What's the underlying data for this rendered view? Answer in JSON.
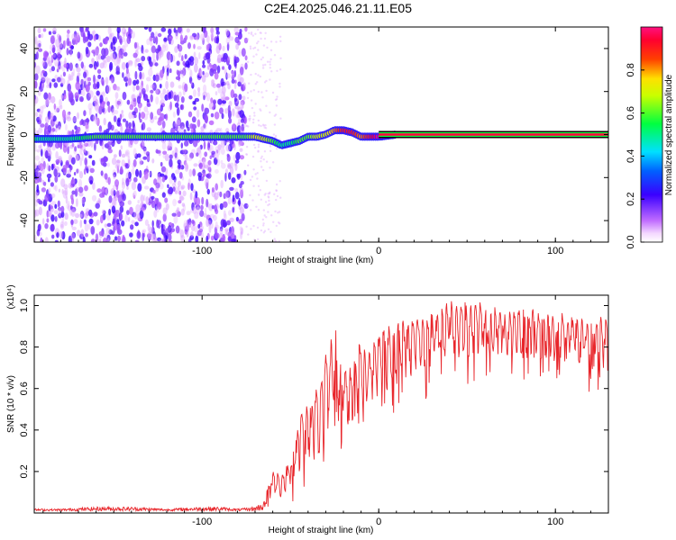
{
  "title": "C2E4.2025.046.21.11.E05",
  "colors": {
    "trace": "#e8262b",
    "spectrogram_low": "#8a2be2",
    "frame": "#000000"
  },
  "colorbar": {
    "label": "Normalized spectral amplitude",
    "ticks": [
      "0.0",
      "0.2",
      "0.4",
      "0.6",
      "0.8"
    ],
    "tick_values": [
      0.0,
      0.2,
      0.4,
      0.6,
      0.8
    ],
    "range": [
      0.0,
      1.0
    ],
    "colormap": "rainbow (magenta-blue-cyan-green-yellow-red-pink)"
  },
  "chart_data": [
    {
      "type": "heatmap",
      "title": "C2E4.2025.046.21.11.E05",
      "xlabel": "Height of straight line (km)",
      "ylabel": "Frequency (Hz)",
      "xlim": [
        -195,
        130
      ],
      "ylim": [
        -50,
        50
      ],
      "x_ticks": [
        "-100",
        "0",
        "100"
      ],
      "x_tick_values": [
        -100,
        0,
        100
      ],
      "y_ticks": [
        "-40",
        "-20",
        "0",
        "20",
        "40"
      ],
      "y_tick_values": [
        -40,
        -20,
        0,
        20,
        40
      ],
      "noise_region_x": [
        -195,
        -75
      ],
      "signal_trace": {
        "x": [
          -195,
          -175,
          -160,
          -145,
          -130,
          -115,
          -100,
          -90,
          -80,
          -75,
          -70,
          -65,
          -60,
          -55,
          -50,
          -45,
          -40,
          -35,
          -30,
          -25,
          -20,
          -15,
          -10,
          -5,
          0,
          10,
          130
        ],
        "freq": [
          -2,
          -2,
          -1,
          -1,
          -1,
          -1,
          -1,
          -1,
          -1,
          -1,
          -1,
          -2,
          -3,
          -5,
          -4,
          -3,
          -1,
          -1,
          0,
          2,
          2,
          1,
          -1,
          -1,
          -1,
          0,
          0
        ],
        "amplitude": [
          0.5,
          0.5,
          0.6,
          0.6,
          0.6,
          0.6,
          0.6,
          0.6,
          0.6,
          0.6,
          0.7,
          0.7,
          0.6,
          0.5,
          0.5,
          0.6,
          0.6,
          0.7,
          0.7,
          0.8,
          0.9,
          0.9,
          0.8,
          0.9,
          1.0,
          1.0,
          1.0
        ]
      },
      "grid": false
    },
    {
      "type": "line",
      "xlabel": "Height of straight line (km)",
      "ylabel": "SNR (10 * v/v)",
      "y_multiplier": "(x10⁴)",
      "xlim": [
        -195,
        130
      ],
      "ylim": [
        0.0,
        1.05
      ],
      "x_ticks": [
        "-100",
        "0",
        "100"
      ],
      "x_tick_values": [
        -100,
        0,
        100
      ],
      "y_ticks": [
        "0.2",
        "0.4",
        "0.6",
        "0.8",
        "1.0"
      ],
      "y_tick_values": [
        0.2,
        0.4,
        0.6,
        0.8,
        1.0
      ],
      "series": [
        {
          "x": [
            -195,
            -180,
            -160,
            -140,
            -120,
            -100,
            -90,
            -80,
            -70,
            -65,
            -60,
            -55,
            -50,
            -45,
            -40,
            -35,
            -30,
            -25,
            -20,
            -15,
            -10,
            -5,
            0,
            10,
            20,
            30,
            40,
            50,
            60,
            70,
            80,
            90,
            100,
            110,
            120,
            130
          ],
          "upper": [
            0.02,
            0.02,
            0.03,
            0.03,
            0.02,
            0.03,
            0.03,
            0.02,
            0.03,
            0.06,
            0.22,
            0.18,
            0.28,
            0.48,
            0.55,
            0.62,
            0.78,
            0.96,
            0.74,
            0.72,
            0.85,
            0.8,
            0.9,
            0.95,
            0.95,
            0.98,
            1.04,
            1.03,
            1.02,
            1.0,
            1.0,
            0.99,
            0.97,
            0.97,
            0.96,
            0.95
          ],
          "lower": [
            0.01,
            0.01,
            0.01,
            0.01,
            0.01,
            0.01,
            0.01,
            0.01,
            0.01,
            0.01,
            0.02,
            0.03,
            0.05,
            0.06,
            0.08,
            0.1,
            0.15,
            0.2,
            0.25,
            0.3,
            0.35,
            0.38,
            0.42,
            0.48,
            0.52,
            0.56,
            0.6,
            0.62,
            0.65,
            0.65,
            0.64,
            0.63,
            0.62,
            0.6,
            0.58,
            0.57
          ]
        }
      ],
      "grid": false
    }
  ]
}
